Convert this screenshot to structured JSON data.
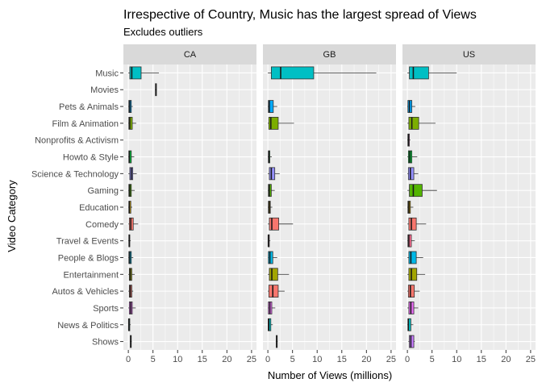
{
  "chart_data": {
    "type": "boxplot",
    "title": "Irrespective of Country, Music has the largest spread of Views",
    "subtitle": "Excludes outliers",
    "xlabel": "Number of Views (millions)",
    "ylabel": "Video Category",
    "xlim": [
      -1,
      26
    ],
    "xticks": [
      0,
      5,
      10,
      15,
      20,
      25
    ],
    "grid": true,
    "legend": "none",
    "categories": [
      "Music",
      "Movies",
      "Pets & Animals",
      "Film & Animation",
      "Nonprofits & Activism",
      "Howto & Style",
      "Science & Technology",
      "Gaming",
      "Education",
      "Comedy",
      "Travel & Events",
      "People & Blogs",
      "Entertainment",
      "Autos & Vehicles",
      "Sports",
      "News & Politics",
      "Shows"
    ],
    "colors": [
      "#00BFC4",
      "#00C0B8",
      "#00A9FF",
      "#7CAE00",
      "#FF61C9",
      "#00BA38",
      "#9590FF",
      "#53B400",
      "#C49A00",
      "#F8766D",
      "#FF6C91",
      "#00B8E7",
      "#A3A500",
      "#F8766D",
      "#E76BF3",
      "#00BFC4",
      "#C77CFF"
    ],
    "panels": [
      {
        "name": "CA",
        "boxes": [
          {
            "category": "Music",
            "min": 0.0,
            "q1": 0.3,
            "median": 0.7,
            "q3": 2.6,
            "max": 6.2
          },
          {
            "category": "Movies",
            "min": 5.4,
            "q1": 5.5,
            "median": 5.6,
            "q3": 5.7,
            "max": 5.8
          },
          {
            "category": "Pets & Animals",
            "min": 0.0,
            "q1": 0.1,
            "median": 0.3,
            "q3": 0.6,
            "max": 0.9
          },
          {
            "category": "Film & Animation",
            "min": 0.0,
            "q1": 0.1,
            "median": 0.3,
            "q3": 0.8,
            "max": 1.6
          },
          {
            "category": "Howto & Style",
            "min": 0.0,
            "q1": 0.1,
            "median": 0.2,
            "q3": 0.6,
            "max": 1.2
          },
          {
            "category": "Science & Technology",
            "min": 0.0,
            "q1": 0.3,
            "median": 0.6,
            "q3": 0.9,
            "max": 1.7
          },
          {
            "category": "Gaming",
            "min": 0.0,
            "q1": 0.1,
            "median": 0.3,
            "q3": 0.6,
            "max": 1.3
          },
          {
            "category": "Education",
            "min": 0.0,
            "q1": 0.1,
            "median": 0.2,
            "q3": 0.5,
            "max": 0.8
          },
          {
            "category": "Comedy",
            "min": 0.0,
            "q1": 0.2,
            "median": 0.5,
            "q3": 1.0,
            "max": 2.0
          },
          {
            "category": "Travel & Events",
            "min": 0.0,
            "q1": 0.1,
            "median": 0.2,
            "q3": 0.3,
            "max": 0.5
          },
          {
            "category": "People & Blogs",
            "min": 0.0,
            "q1": 0.1,
            "median": 0.3,
            "q3": 0.6,
            "max": 1.0
          },
          {
            "category": "Entertainment",
            "min": 0.0,
            "q1": 0.2,
            "median": 0.4,
            "q3": 0.7,
            "max": 1.3
          },
          {
            "category": "Autos & Vehicles",
            "min": 0.0,
            "q1": 0.2,
            "median": 0.4,
            "q3": 0.7,
            "max": 1.0
          },
          {
            "category": "Sports",
            "min": 0.0,
            "q1": 0.2,
            "median": 0.5,
            "q3": 0.8,
            "max": 1.5
          },
          {
            "category": "News & Politics",
            "min": 0.0,
            "q1": 0.05,
            "median": 0.1,
            "q3": 0.3,
            "max": 0.5
          },
          {
            "category": "Shows",
            "min": 0.3,
            "q1": 0.4,
            "median": 0.5,
            "q3": 0.6,
            "max": 0.7
          }
        ]
      },
      {
        "name": "GB",
        "boxes": [
          {
            "category": "Music",
            "min": 0.0,
            "q1": 0.7,
            "median": 2.6,
            "q3": 9.3,
            "max": 22.0
          },
          {
            "category": "Pets & Animals",
            "min": 0.0,
            "q1": 0.1,
            "median": 0.3,
            "q3": 1.1,
            "max": 1.9
          },
          {
            "category": "Film & Animation",
            "min": 0.0,
            "q1": 0.2,
            "median": 0.6,
            "q3": 2.1,
            "max": 5.3
          },
          {
            "category": "Howto & Style",
            "min": 0.0,
            "q1": 0.1,
            "median": 0.2,
            "q3": 0.4,
            "max": 0.8
          },
          {
            "category": "Science & Technology",
            "min": 0.0,
            "q1": 0.3,
            "median": 0.7,
            "q3": 1.4,
            "max": 2.4
          },
          {
            "category": "Gaming",
            "min": 0.0,
            "q1": 0.1,
            "median": 0.3,
            "q3": 0.7,
            "max": 1.4
          },
          {
            "category": "Education",
            "min": 0.0,
            "q1": 0.1,
            "median": 0.3,
            "q3": 0.5,
            "max": 0.9
          },
          {
            "category": "Comedy",
            "min": 0.0,
            "q1": 0.3,
            "median": 0.8,
            "q3": 2.2,
            "max": 5.1
          },
          {
            "category": "Travel & Events",
            "min": 0.0,
            "q1": 0.05,
            "median": 0.1,
            "q3": 0.3,
            "max": 0.5
          },
          {
            "category": "People & Blogs",
            "min": 0.0,
            "q1": 0.1,
            "median": 0.4,
            "q3": 1.0,
            "max": 1.9
          },
          {
            "category": "Entertainment",
            "min": 0.0,
            "q1": 0.3,
            "median": 0.8,
            "q3": 2.0,
            "max": 4.3
          },
          {
            "category": "Autos & Vehicles",
            "min": 0.0,
            "q1": 0.2,
            "median": 1.0,
            "q3": 2.1,
            "max": 3.4
          },
          {
            "category": "Sports",
            "min": 0.0,
            "q1": 0.1,
            "median": 0.4,
            "q3": 0.8,
            "max": 1.5
          },
          {
            "category": "News & Politics",
            "min": 0.0,
            "q1": 0.05,
            "median": 0.2,
            "q3": 0.6,
            "max": 1.0
          },
          {
            "category": "Shows",
            "min": 1.6,
            "q1": 1.7,
            "median": 1.8,
            "q3": 1.9,
            "max": 2.0
          }
        ]
      },
      {
        "name": "US",
        "boxes": [
          {
            "category": "Music",
            "min": 0.0,
            "q1": 0.4,
            "median": 1.2,
            "q3": 4.3,
            "max": 10.0
          },
          {
            "category": "Pets & Animals",
            "min": 0.0,
            "q1": 0.1,
            "median": 0.4,
            "q3": 0.9,
            "max": 1.6
          },
          {
            "category": "Film & Animation",
            "min": 0.0,
            "q1": 0.3,
            "median": 0.9,
            "q3": 2.3,
            "max": 5.7
          },
          {
            "category": "Nonprofits & Activism",
            "min": 0.0,
            "q1": 0.1,
            "median": 0.2,
            "q3": 0.4,
            "max": 0.6
          },
          {
            "category": "Howto & Style",
            "min": 0.0,
            "q1": 0.2,
            "median": 0.5,
            "q3": 0.9,
            "max": 2.0
          },
          {
            "category": "Science & Technology",
            "min": 0.0,
            "q1": 0.2,
            "median": 0.6,
            "q3": 1.3,
            "max": 2.2
          },
          {
            "category": "Gaming",
            "min": 0.0,
            "q1": 0.4,
            "median": 1.2,
            "q3": 3.0,
            "max": 6.0
          },
          {
            "category": "Education",
            "min": 0.0,
            "q1": 0.1,
            "median": 0.3,
            "q3": 0.6,
            "max": 1.2
          },
          {
            "category": "Comedy",
            "min": 0.0,
            "q1": 0.3,
            "median": 0.8,
            "q3": 1.8,
            "max": 3.8
          },
          {
            "category": "Travel & Events",
            "min": 0.0,
            "q1": 0.1,
            "median": 0.3,
            "q3": 0.8,
            "max": 1.5
          },
          {
            "category": "People & Blogs",
            "min": 0.0,
            "q1": 0.3,
            "median": 0.7,
            "q3": 1.8,
            "max": 3.2
          },
          {
            "category": "Entertainment",
            "min": 0.0,
            "q1": 0.3,
            "median": 0.8,
            "q3": 1.9,
            "max": 3.6
          },
          {
            "category": "Autos & Vehicles",
            "min": 0.0,
            "q1": 0.2,
            "median": 0.6,
            "q3": 1.4,
            "max": 2.5
          },
          {
            "category": "Sports",
            "min": 0.0,
            "q1": 0.3,
            "median": 0.7,
            "q3": 1.3,
            "max": 2.2
          },
          {
            "category": "News & Politics",
            "min": 0.0,
            "q1": 0.1,
            "median": 0.2,
            "q3": 0.7,
            "max": 1.2
          },
          {
            "category": "Shows",
            "min": 0.2,
            "q1": 0.4,
            "median": 0.7,
            "q3": 1.3,
            "max": 1.5
          }
        ]
      }
    ]
  }
}
